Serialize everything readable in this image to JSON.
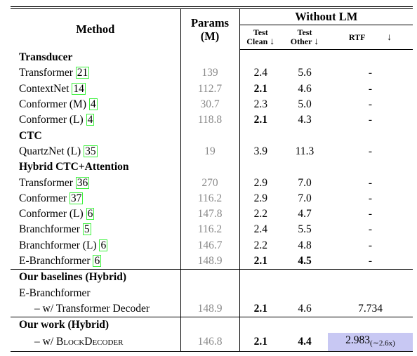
{
  "header": {
    "method": "Method",
    "params_line1": "Params",
    "params_line2": "(M)",
    "group": "Without LM",
    "clean_line1": "Test",
    "clean_line2": "Clean",
    "other_line1": "Test",
    "other_line2": "Other",
    "rtf": "RTF",
    "arrow": "↓"
  },
  "sections": [
    {
      "title": "Transducer",
      "rows": [
        {
          "method": "Transformer",
          "cite": "21",
          "params": "139",
          "clean": "2.4",
          "other": "5.6",
          "rtf": "-",
          "clean_bold": false,
          "other_bold": false
        },
        {
          "method": "ContextNet",
          "cite": "14",
          "params": "112.7",
          "clean": "2.1",
          "other": "4.6",
          "rtf": "-",
          "clean_bold": true,
          "other_bold": false
        },
        {
          "method": "Conformer (M)",
          "cite": "4",
          "params": "30.7",
          "clean": "2.3",
          "other": "5.0",
          "rtf": "-",
          "clean_bold": false,
          "other_bold": false
        },
        {
          "method": "Conformer (L)",
          "cite": "4",
          "params": "118.8",
          "clean": "2.1",
          "other": "4.3",
          "rtf": "-",
          "clean_bold": true,
          "other_bold": false
        }
      ]
    },
    {
      "title": "CTC",
      "rows": [
        {
          "method": "QuartzNet (L)",
          "cite": "35",
          "params": "19",
          "clean": "3.9",
          "other": "11.3",
          "rtf": "-",
          "clean_bold": false,
          "other_bold": false
        }
      ]
    },
    {
      "title": "Hybrid CTC+Attention",
      "rows": [
        {
          "method": "Transformer",
          "cite": "36",
          "params": "270",
          "clean": "2.9",
          "other": "7.0",
          "rtf": "-",
          "clean_bold": false,
          "other_bold": false
        },
        {
          "method": "Conformer",
          "cite": "37",
          "params": "116.2",
          "clean": "2.9",
          "other": "7.0",
          "rtf": "-",
          "clean_bold": false,
          "other_bold": false
        },
        {
          "method": "Conformer (L)",
          "cite": "6",
          "params": "147.8",
          "clean": "2.2",
          "other": "4.7",
          "rtf": "-",
          "clean_bold": false,
          "other_bold": false
        },
        {
          "method": "Branchformer",
          "cite": "5",
          "params": "116.2",
          "clean": "2.4",
          "other": "5.5",
          "rtf": "-",
          "clean_bold": false,
          "other_bold": false
        },
        {
          "method": "Branchformer (L)",
          "cite": "6",
          "params": "146.7",
          "clean": "2.2",
          "other": "4.8",
          "rtf": "-",
          "clean_bold": false,
          "other_bold": false
        },
        {
          "method": "E-Branchformer",
          "cite": "6",
          "params": "148.9",
          "clean": "2.1",
          "other": "4.5",
          "rtf": "-",
          "clean_bold": true,
          "other_bold": true
        }
      ]
    }
  ],
  "baselines": {
    "title": "Our baselines (Hybrid)",
    "parent": "E-Branchformer",
    "row": {
      "method": "– w/ Transformer Decoder",
      "params": "148.9",
      "clean": "2.1",
      "other": "4.6",
      "rtf": "7.734"
    }
  },
  "ours": {
    "title": "Our work (Hybrid)",
    "row": {
      "method_prefix": "– w/ ",
      "method_name": "BlockDecoder",
      "params": "146.8",
      "clean": "2.1",
      "other": "4.4",
      "rtf": "2.983",
      "speedup": "(∼2.6x)"
    }
  },
  "colors": {
    "citation_box": "#3cf23c",
    "rtf_highlight": "#c8c8f3",
    "params_text": "#8a8a8a"
  }
}
